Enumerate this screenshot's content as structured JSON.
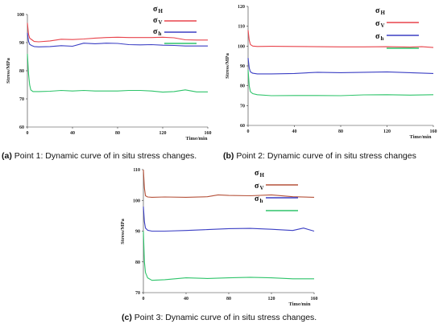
{
  "chart_data": [
    {
      "type": "line",
      "caption_label": "(a)",
      "caption_text": "Point 1: Dynamic curve of in situ stress changes.",
      "xlabel": "Time/min",
      "ylabel": "Stress/MPa",
      "xlim": [
        0,
        160
      ],
      "ylim": [
        60,
        100
      ],
      "xticks": [
        0,
        40,
        80,
        120,
        160
      ],
      "yticks": [
        60,
        70,
        80,
        90,
        100
      ],
      "legend_position": "top-right",
      "series": [
        {
          "sym": "σ",
          "sub": "H",
          "color": "#e8434b",
          "points": [
            [
              0,
              97
            ],
            [
              1,
              93
            ],
            [
              2,
              91.6
            ],
            [
              4,
              91
            ],
            [
              6,
              90.4
            ],
            [
              10,
              90.3
            ],
            [
              20,
              90.6
            ],
            [
              30,
              91.2
            ],
            [
              40,
              91.1
            ],
            [
              50,
              91.3
            ],
            [
              60,
              91.6
            ],
            [
              70,
              91.8
            ],
            [
              80,
              91.9
            ],
            [
              90,
              91.8
            ],
            [
              100,
              91.8
            ],
            [
              110,
              91.8
            ],
            [
              120,
              91.9
            ],
            [
              130,
              91.7
            ],
            [
              140,
              91.0
            ],
            [
              150,
              90.9
            ],
            [
              160,
              90.9
            ]
          ]
        },
        {
          "sym": "σ",
          "sub": "V",
          "color": "#3b3fc4",
          "points": [
            [
              0,
              93.5
            ],
            [
              1,
              90.5
            ],
            [
              2,
              89.4
            ],
            [
              4,
              88.9
            ],
            [
              6,
              88.6
            ],
            [
              10,
              88.5
            ],
            [
              20,
              88.6
            ],
            [
              30,
              88.9
            ],
            [
              40,
              88.7
            ],
            [
              50,
              89.8
            ],
            [
              60,
              89.6
            ],
            [
              70,
              89.8
            ],
            [
              80,
              89.7
            ],
            [
              90,
              89.3
            ],
            [
              100,
              89.2
            ],
            [
              110,
              89.3
            ],
            [
              120,
              89.1
            ],
            [
              130,
              89.0
            ],
            [
              140,
              88.8
            ],
            [
              150,
              88.8
            ],
            [
              160,
              88.8
            ]
          ]
        },
        {
          "sym": "σ",
          "sub": "h",
          "color": "#2ec46a",
          "points": [
            [
              0,
              86
            ],
            [
              1,
              79
            ],
            [
              2,
              75
            ],
            [
              3,
              73.2
            ],
            [
              5,
              72.6
            ],
            [
              10,
              72.6
            ],
            [
              20,
              72.7
            ],
            [
              30,
              73.0
            ],
            [
              40,
              72.8
            ],
            [
              50,
              73.0
            ],
            [
              60,
              72.8
            ],
            [
              70,
              72.8
            ],
            [
              80,
              72.8
            ],
            [
              90,
              73.0
            ],
            [
              100,
              73.0
            ],
            [
              110,
              72.8
            ],
            [
              120,
              72.4
            ],
            [
              130,
              72.6
            ],
            [
              140,
              73.2
            ],
            [
              150,
              72.5
            ],
            [
              160,
              72.5
            ]
          ]
        }
      ]
    },
    {
      "type": "line",
      "caption_label": "(b)",
      "caption_text": "Point 2: Dynamic curve of in situ stress changes",
      "xlabel": "Time/min",
      "ylabel": "Stress/MPa",
      "xlim": [
        0,
        160
      ],
      "ylim": [
        60,
        120
      ],
      "xticks": [
        0,
        40,
        80,
        120,
        160
      ],
      "yticks": [
        60,
        70,
        80,
        90,
        100,
        110,
        120
      ],
      "legend_position": "top-right",
      "series": [
        {
          "sym": "σ",
          "sub": "H",
          "color": "#e8434b",
          "points": [
            [
              0,
              108
            ],
            [
              1,
              103
            ],
            [
              2,
              100.8
            ],
            [
              4,
              100
            ],
            [
              8,
              99.8
            ],
            [
              20,
              99.9
            ],
            [
              40,
              99.8
            ],
            [
              60,
              99.7
            ],
            [
              80,
              99.6
            ],
            [
              100,
              99.6
            ],
            [
              120,
              99.7
            ],
            [
              140,
              99.5
            ],
            [
              150,
              99.7
            ],
            [
              160,
              99.3
            ]
          ]
        },
        {
          "sym": "σ",
          "sub": "V",
          "color": "#3b3fc4",
          "points": [
            [
              0,
              94
            ],
            [
              1,
              89
            ],
            [
              2,
              87
            ],
            [
              4,
              86.3
            ],
            [
              8,
              86
            ],
            [
              20,
              86
            ],
            [
              40,
              86.2
            ],
            [
              60,
              86.8
            ],
            [
              80,
              86.6
            ],
            [
              100,
              86.8
            ],
            [
              120,
              87
            ],
            [
              140,
              86.6
            ],
            [
              160,
              86.2
            ]
          ]
        },
        {
          "sym": "σ",
          "sub": "h",
          "color": "#2ec46a",
          "points": [
            [
              0,
              88
            ],
            [
              1,
              80
            ],
            [
              2,
              77
            ],
            [
              4,
              76
            ],
            [
              8,
              75.5
            ],
            [
              20,
              75
            ],
            [
              40,
              75.1
            ],
            [
              60,
              75.1
            ],
            [
              80,
              75
            ],
            [
              100,
              75.4
            ],
            [
              120,
              75.5
            ],
            [
              140,
              75.3
            ],
            [
              160,
              75.5
            ]
          ]
        }
      ]
    },
    {
      "type": "line",
      "caption_label": "(c)",
      "caption_text": "Point 3: Dynamic curve of in situ stress changes.",
      "xlabel": "Time/min",
      "ylabel": "Stress/MPa",
      "xlim": [
        0,
        160
      ],
      "ylim": [
        70,
        110
      ],
      "xticks": [
        0,
        40,
        80,
        120,
        160
      ],
      "yticks": [
        70,
        80,
        90,
        100,
        110
      ],
      "legend_position": "top-right",
      "series": [
        {
          "sym": "σ",
          "sub": "H",
          "color": "#b5523a",
          "points": [
            [
              0,
              110
            ],
            [
              1,
              104
            ],
            [
              2,
              101.5
            ],
            [
              4,
              101.1
            ],
            [
              8,
              101
            ],
            [
              20,
              101.1
            ],
            [
              40,
              101
            ],
            [
              60,
              101.2
            ],
            [
              70,
              101.8
            ],
            [
              80,
              101.6
            ],
            [
              100,
              101.5
            ],
            [
              120,
              101.8
            ],
            [
              140,
              101.2
            ],
            [
              160,
              101
            ]
          ]
        },
        {
          "sym": "σ",
          "sub": "V",
          "color": "#3b3fc4",
          "points": [
            [
              0,
              98
            ],
            [
              1,
              93
            ],
            [
              2,
              91
            ],
            [
              4,
              90.3
            ],
            [
              8,
              90
            ],
            [
              20,
              90
            ],
            [
              40,
              90.2
            ],
            [
              60,
              90.5
            ],
            [
              80,
              90.8
            ],
            [
              100,
              90.9
            ],
            [
              120,
              90.6
            ],
            [
              140,
              90.2
            ],
            [
              150,
              91
            ],
            [
              160,
              90
            ]
          ]
        },
        {
          "sym": "σ",
          "sub": "h",
          "color": "#2ec46a",
          "points": [
            [
              0,
              90
            ],
            [
              1,
              80
            ],
            [
              2,
              76.5
            ],
            [
              4,
              74.8
            ],
            [
              8,
              74
            ],
            [
              20,
              74.2
            ],
            [
              40,
              74.8
            ],
            [
              60,
              74.6
            ],
            [
              80,
              74.8
            ],
            [
              100,
              75
            ],
            [
              120,
              74.8
            ],
            [
              140,
              74.5
            ],
            [
              160,
              74.5
            ]
          ]
        }
      ]
    }
  ]
}
